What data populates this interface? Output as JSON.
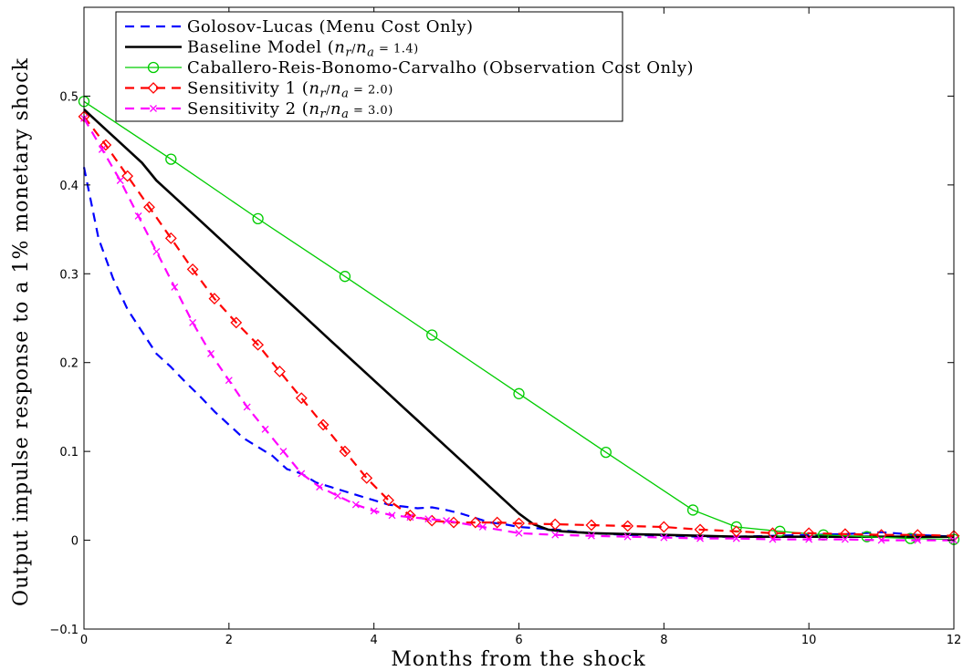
{
  "chart_data": {
    "type": "line",
    "xlabel": "Months from the shock",
    "ylabel": "Output impulse response to a 1% monetary shock",
    "xlim": [
      0,
      12
    ],
    "ylim": [
      -0.1,
      0.6
    ],
    "xticks": [
      "0",
      "2",
      "4",
      "6",
      "8",
      "10",
      "12"
    ],
    "yticks": [
      "−0.1",
      "0",
      "0.1",
      "0.2",
      "0.3",
      "0.4",
      "0.5"
    ],
    "grid": false,
    "legend_position": "top",
    "series": [
      {
        "name": "Golosov-Lucas",
        "name_suffix": "(Menu Cost Only)",
        "color": "#0000ff",
        "dash": "dashed",
        "marker": "none",
        "x": [
          0,
          0.2,
          0.4,
          0.6,
          0.8,
          1.0,
          1.2,
          1.4,
          1.6,
          1.8,
          2.0,
          2.2,
          2.4,
          2.6,
          2.8,
          3.0,
          3.2,
          3.4,
          3.6,
          3.8,
          4.0,
          4.2,
          4.4,
          4.6,
          4.8,
          5.0,
          5.2,
          5.4,
          5.6,
          5.8,
          6.0,
          6.5,
          7.0,
          7.5,
          8.0,
          8.5,
          9.0,
          9.5,
          10.0,
          10.5,
          11.0,
          11.5,
          12.0
        ],
        "y": [
          0.42,
          0.34,
          0.295,
          0.26,
          0.235,
          0.21,
          0.195,
          0.178,
          0.162,
          0.145,
          0.13,
          0.115,
          0.105,
          0.095,
          0.08,
          0.075,
          0.065,
          0.06,
          0.055,
          0.05,
          0.045,
          0.04,
          0.038,
          0.036,
          0.037,
          0.034,
          0.03,
          0.025,
          0.02,
          0.018,
          0.015,
          0.012,
          0.008,
          0.006,
          0.005,
          0.004,
          0.004,
          0.005,
          0.006,
          0.007,
          0.009,
          0.006,
          0.004
        ]
      },
      {
        "name": "Baseline Model",
        "name_math": "(n_r/n_a = 1.4)",
        "color": "#000000",
        "dash": "solid",
        "marker": "none",
        "x": [
          0,
          0.2,
          0.4,
          0.6,
          0.8,
          1.0,
          1.2,
          1.4,
          1.6,
          1.8,
          2.0,
          2.2,
          2.4,
          2.6,
          2.8,
          3.0,
          3.2,
          3.4,
          3.6,
          3.8,
          4.0,
          4.2,
          4.4,
          4.6,
          4.8,
          5.0,
          5.2,
          5.4,
          5.6,
          5.8,
          6.0,
          6.2,
          6.4,
          6.6,
          7.0,
          7.5,
          8.0,
          8.5,
          9.0,
          9.5,
          10.0,
          10.5,
          11.0,
          11.5,
          12.0
        ],
        "y": [
          0.485,
          0.47,
          0.455,
          0.44,
          0.425,
          0.405,
          0.39,
          0.375,
          0.36,
          0.345,
          0.33,
          0.315,
          0.3,
          0.285,
          0.27,
          0.255,
          0.24,
          0.225,
          0.21,
          0.195,
          0.18,
          0.165,
          0.15,
          0.135,
          0.12,
          0.105,
          0.09,
          0.075,
          0.06,
          0.045,
          0.03,
          0.018,
          0.012,
          0.01,
          0.008,
          0.007,
          0.006,
          0.005,
          0.004,
          0.004,
          0.004,
          0.004,
          0.004,
          0.004,
          0.004
        ]
      },
      {
        "name": "Caballero-Reis-Bonomo-Carvalho",
        "name_suffix": "(Observation Cost Only)",
        "color": "#00cc00",
        "dash": "solid",
        "marker": "circle",
        "x": [
          0,
          1.2,
          2.4,
          3.6,
          4.8,
          6.0,
          7.2,
          8.4,
          9.0,
          9.6,
          10.2,
          10.8,
          11.4,
          12.0
        ],
        "y": [
          0.494,
          0.429,
          0.362,
          0.297,
          0.231,
          0.165,
          0.099,
          0.034,
          0.015,
          0.01,
          0.006,
          0.004,
          0.002,
          0.001
        ]
      },
      {
        "name": "Sensitivity 1",
        "name_math": "(n_r/n_a = 2.0)",
        "color": "#ff0000",
        "dash": "dashed",
        "marker": "diamond",
        "x": [
          0,
          0.3,
          0.6,
          0.9,
          1.2,
          1.5,
          1.8,
          2.1,
          2.4,
          2.7,
          3.0,
          3.3,
          3.6,
          3.9,
          4.2,
          4.5,
          4.8,
          5.1,
          5.4,
          5.7,
          6.0,
          6.5,
          7.0,
          7.5,
          8.0,
          8.5,
          9.0,
          9.5,
          10.0,
          10.5,
          11.0,
          11.5,
          12.0
        ],
        "y": [
          0.477,
          0.445,
          0.41,
          0.375,
          0.34,
          0.305,
          0.272,
          0.245,
          0.22,
          0.19,
          0.16,
          0.13,
          0.1,
          0.07,
          0.045,
          0.028,
          0.022,
          0.02,
          0.02,
          0.02,
          0.019,
          0.018,
          0.017,
          0.016,
          0.015,
          0.012,
          0.01,
          0.008,
          0.008,
          0.007,
          0.006,
          0.006,
          0.005
        ]
      },
      {
        "name": "Sensitivity 2",
        "name_math": "(n_r/n_a = 3.0)",
        "color": "#ff00ff",
        "dash": "dashed",
        "marker": "x",
        "x": [
          0,
          0.25,
          0.5,
          0.75,
          1.0,
          1.25,
          1.5,
          1.75,
          2.0,
          2.25,
          2.5,
          2.75,
          3.0,
          3.25,
          3.5,
          3.75,
          4.0,
          4.25,
          4.5,
          4.75,
          5.0,
          5.5,
          6.0,
          6.5,
          7.0,
          7.5,
          8.0,
          8.5,
          9.0,
          9.5,
          10.0,
          10.5,
          11.0,
          11.5,
          12.0
        ],
        "y": [
          0.475,
          0.44,
          0.405,
          0.365,
          0.325,
          0.285,
          0.245,
          0.21,
          0.18,
          0.15,
          0.125,
          0.1,
          0.075,
          0.06,
          0.05,
          0.04,
          0.033,
          0.028,
          0.026,
          0.024,
          0.022,
          0.015,
          0.008,
          0.006,
          0.005,
          0.004,
          0.003,
          0.002,
          0.002,
          0.001,
          0.001,
          0.001,
          0.0,
          0.0,
          0.0
        ]
      }
    ]
  }
}
